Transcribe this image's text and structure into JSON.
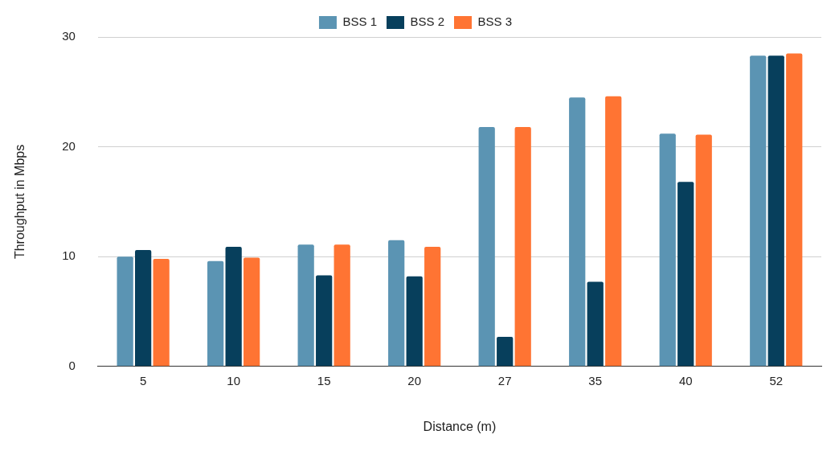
{
  "chart_data": {
    "type": "bar",
    "xlabel": "Distance (m)",
    "ylabel": "Throughput in Mbps",
    "categories": [
      "5",
      "10",
      "15",
      "20",
      "27",
      "35",
      "40",
      "52"
    ],
    "series": [
      {
        "name": "BSS 1",
        "color": "#5b94b3",
        "values": [
          10.0,
          9.6,
          11.1,
          11.5,
          21.8,
          24.5,
          21.2,
          28.3
        ]
      },
      {
        "name": "BSS 2",
        "color": "#073f5c",
        "values": [
          10.6,
          10.9,
          8.3,
          8.2,
          2.7,
          7.7,
          16.8,
          28.3
        ]
      },
      {
        "name": "BSS 3",
        "color": "#ff7433",
        "values": [
          9.8,
          9.9,
          11.1,
          10.9,
          21.8,
          24.6,
          21.1,
          28.5
        ]
      }
    ],
    "ylim": [
      0,
      30
    ],
    "yticks": [
      0,
      10,
      20,
      30
    ],
    "grid": "y",
    "legend": "top"
  }
}
